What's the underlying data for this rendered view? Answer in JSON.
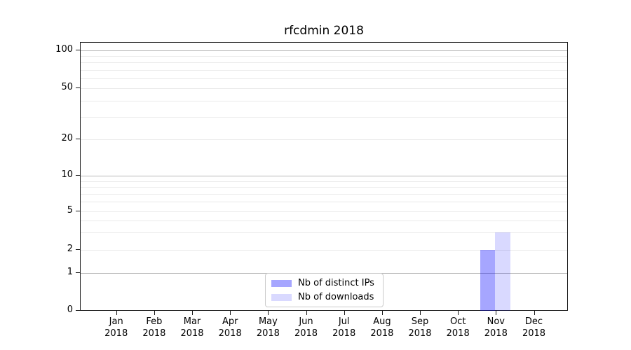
{
  "title": "rfcdmin 2018",
  "legend": {
    "items": [
      {
        "label": "Nb of distinct IPs",
        "color": "rgba(0,0,255,0.35)"
      },
      {
        "label": "Nb of downloads",
        "color": "rgba(0,0,255,0.15)"
      }
    ]
  },
  "y_axis": {
    "tick_labels": [
      "100",
      "50",
      "20",
      "10",
      "5",
      "2",
      "1",
      "0"
    ]
  },
  "x_axis": {
    "months": [
      "Jan",
      "Feb",
      "Mar",
      "Apr",
      "May",
      "Jun",
      "Jul",
      "Aug",
      "Sep",
      "Oct",
      "Nov",
      "Dec"
    ],
    "year": "2018"
  },
  "chart_data": {
    "type": "bar",
    "title": "rfcdmin 2018",
    "categories": [
      "Jan 2018",
      "Feb 2018",
      "Mar 2018",
      "Apr 2018",
      "May 2018",
      "Jun 2018",
      "Jul 2018",
      "Aug 2018",
      "Sep 2018",
      "Oct 2018",
      "Nov 2018",
      "Dec 2018"
    ],
    "series": [
      {
        "name": "Nb of distinct IPs",
        "values": [
          0,
          0,
          0,
          0,
          0,
          0,
          0,
          0,
          0,
          0,
          2,
          0
        ]
      },
      {
        "name": "Nb of downloads",
        "values": [
          0,
          0,
          0,
          0,
          0,
          0,
          0,
          0,
          0,
          0,
          3,
          0
        ]
      }
    ],
    "xlabel": "",
    "ylabel": "",
    "yscale": "symlog-like",
    "ytick_values": [
      0,
      1,
      2,
      5,
      10,
      20,
      50,
      100
    ],
    "ylim": [
      0,
      110
    ],
    "grid": "horizontal major (decades, darker) + minor (lighter)",
    "legend_position": "inside axes, lower center-left"
  }
}
